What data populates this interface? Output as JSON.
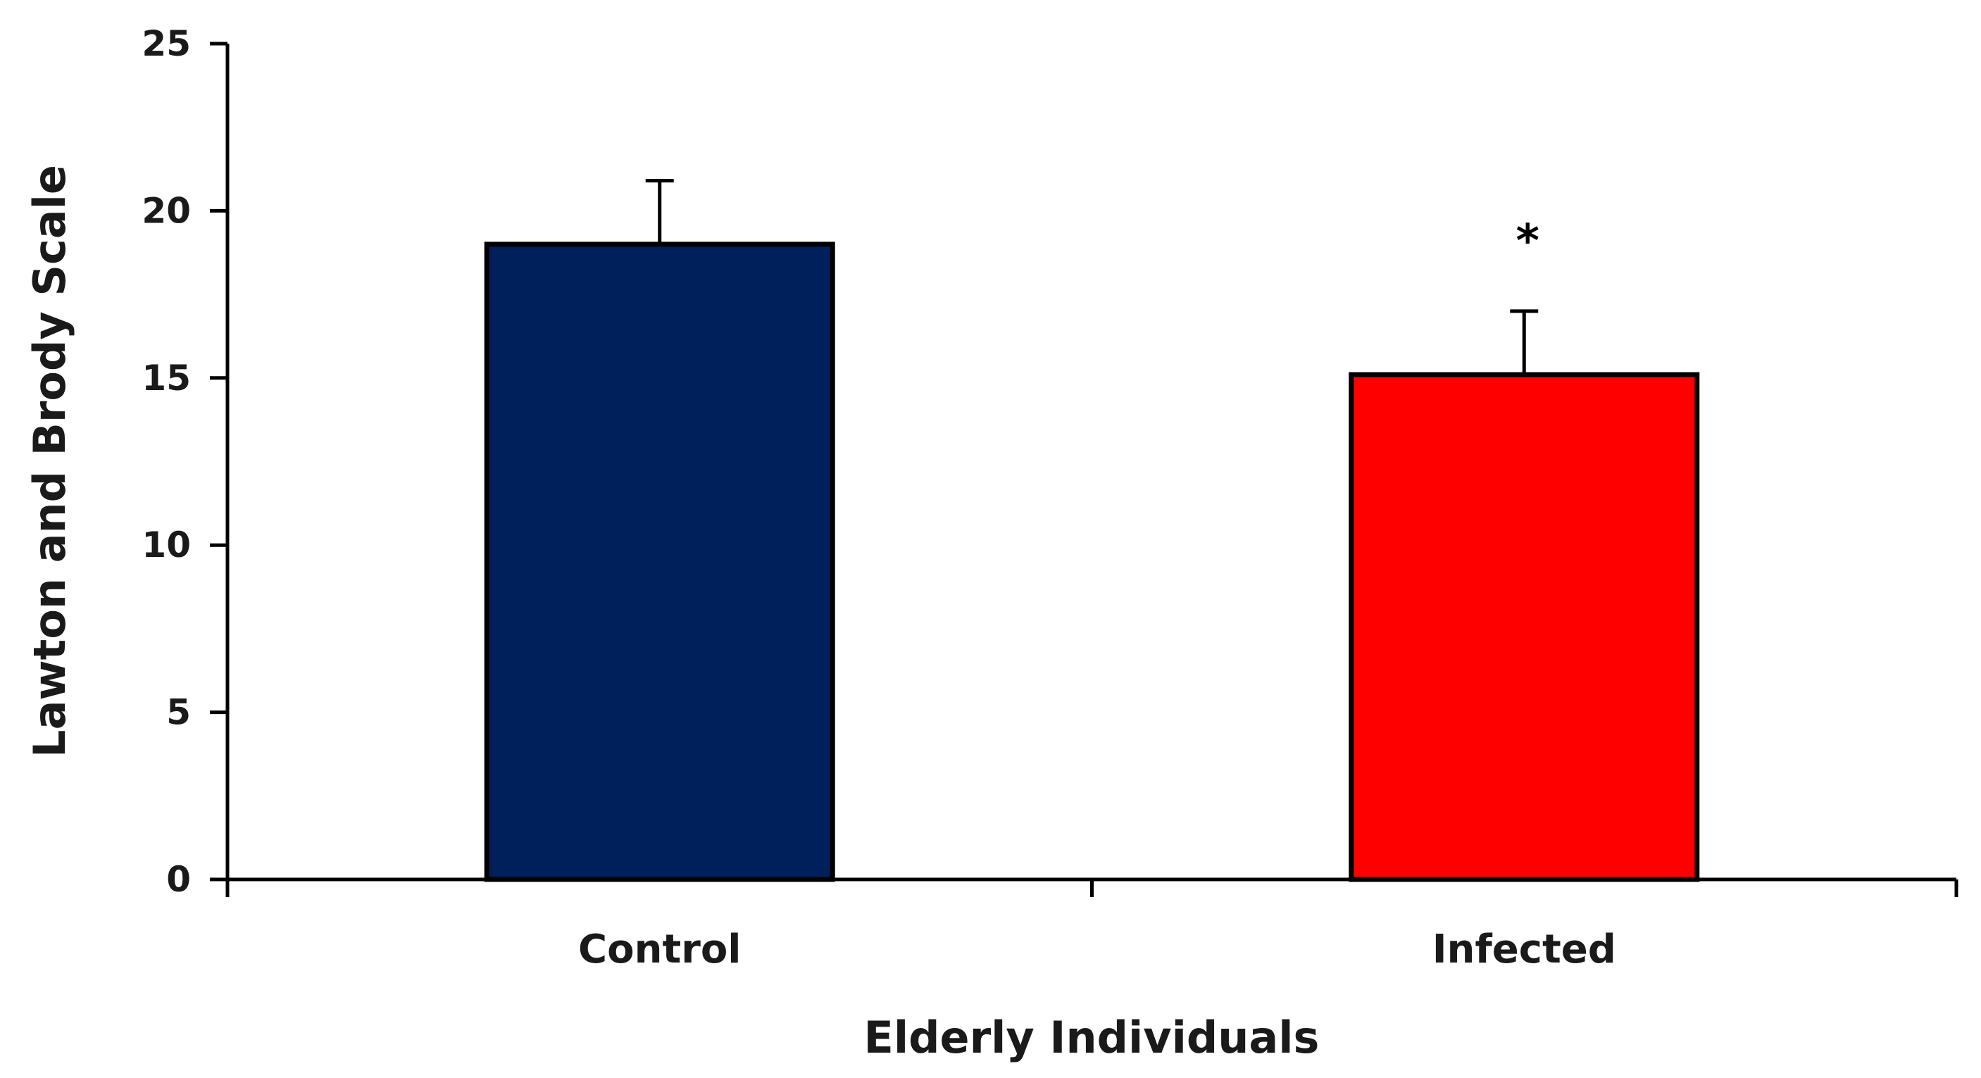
{
  "chart_data": {
    "type": "bar",
    "categories": [
      "Control",
      "Infected"
    ],
    "values": [
      19.0,
      15.1
    ],
    "errors": [
      1.9,
      1.9
    ],
    "colors": [
      "#00205b",
      "#ff0000"
    ],
    "annotations": [
      "",
      "*"
    ],
    "xlabel": "Elderly Individuals",
    "ylabel": "Lawton and Brody Scale",
    "ylim": [
      0,
      25
    ],
    "yticks": [
      "0",
      "5",
      "10",
      "15",
      "20",
      "25"
    ],
    "grid": false,
    "legend": "none"
  }
}
